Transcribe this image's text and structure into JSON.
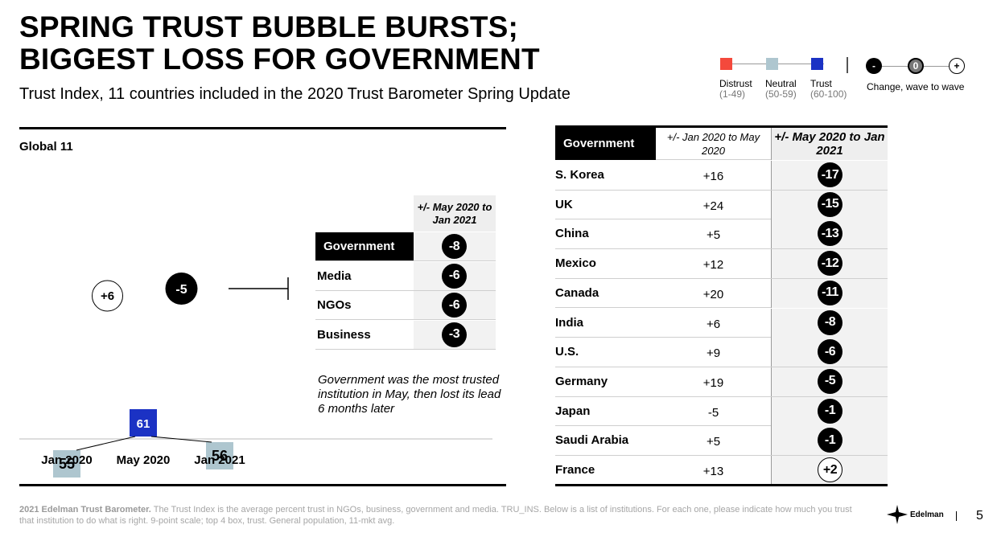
{
  "title": {
    "line1": "SPRING TRUST BUBBLE BURSTS;",
    "line2": "BIGGEST LOSS FOR GOVERNMENT"
  },
  "subtitle": "Trust Index, 11 countries included in the 2020 Trust Barometer Spring Update",
  "legend": {
    "distrust": {
      "label": "Distrust",
      "range": "(1-49)",
      "color": "#f4493c"
    },
    "neutral": {
      "label": "Neutral",
      "range": "(50-59)",
      "color": "#aec6cf"
    },
    "trust": {
      "label": "Trust",
      "range": "(60-100)",
      "color": "#1b32c4"
    },
    "change_symbols": [
      "-",
      "0",
      "+"
    ],
    "change_label": "Change, wave to wave"
  },
  "chart_data": {
    "type": "bar",
    "title": "Global 11",
    "categories": [
      "Jan 2020",
      "May 2020",
      "Jan 2021"
    ],
    "values": [
      55,
      61,
      56
    ],
    "value_labels": [
      "55",
      "61",
      "56"
    ],
    "value_colors": [
      "#aec6cf",
      "#1b32c4",
      "#aec6cf"
    ],
    "changes": [
      "+6",
      "-5"
    ],
    "ylim": [
      0,
      100
    ]
  },
  "small_table": {
    "header": "+/- May 2020 to Jan 2021",
    "rows": [
      {
        "name": "Government",
        "change": "-8",
        "highlight": true
      },
      {
        "name": "Media",
        "change": "-6",
        "highlight": false
      },
      {
        "name": "NGOs",
        "change": "-6",
        "highlight": false
      },
      {
        "name": "Business",
        "change": "-3",
        "highlight": false
      }
    ]
  },
  "note": "Government was the most trusted institution in May, then lost its lead 6 months later",
  "country_table": {
    "header_institution": "Government",
    "header_col1": "+/- Jan 2020 to May 2020",
    "header_col2": "+/- May 2020 to Jan 2021",
    "rows": [
      {
        "country": "S. Korea",
        "change1": "+16",
        "change2": "-17"
      },
      {
        "country": "UK",
        "change1": "+24",
        "change2": "-15"
      },
      {
        "country": "China",
        "change1": "+5",
        "change2": "-13"
      },
      {
        "country": "Mexico",
        "change1": "+12",
        "change2": "-12"
      },
      {
        "country": "Canada",
        "change1": "+20",
        "change2": "-11"
      },
      {
        "country": "India",
        "change1": "+6",
        "change2": "-8"
      },
      {
        "country": "U.S.",
        "change1": "+9",
        "change2": "-6"
      },
      {
        "country": "Germany",
        "change1": "+19",
        "change2": "-5"
      },
      {
        "country": "Japan",
        "change1": "-5",
        "change2": "-1"
      },
      {
        "country": "Saudi Arabia",
        "change1": "+5",
        "change2": "-1"
      },
      {
        "country": "France",
        "change1": "+13",
        "change2": "+2"
      }
    ]
  },
  "footer": {
    "source_bold": "2021 Edelman Trust Barometer.",
    "source_text": "The Trust Index is the average percent trust in NGOs, business, government and media. TRU_INS. Below is a list of institutions. For each one, please indicate how much you trust that institution to do what is right. 9-point scale; top 4 box, trust. General population, 11-mkt avg.",
    "logo": "Edelman",
    "page": "5"
  }
}
